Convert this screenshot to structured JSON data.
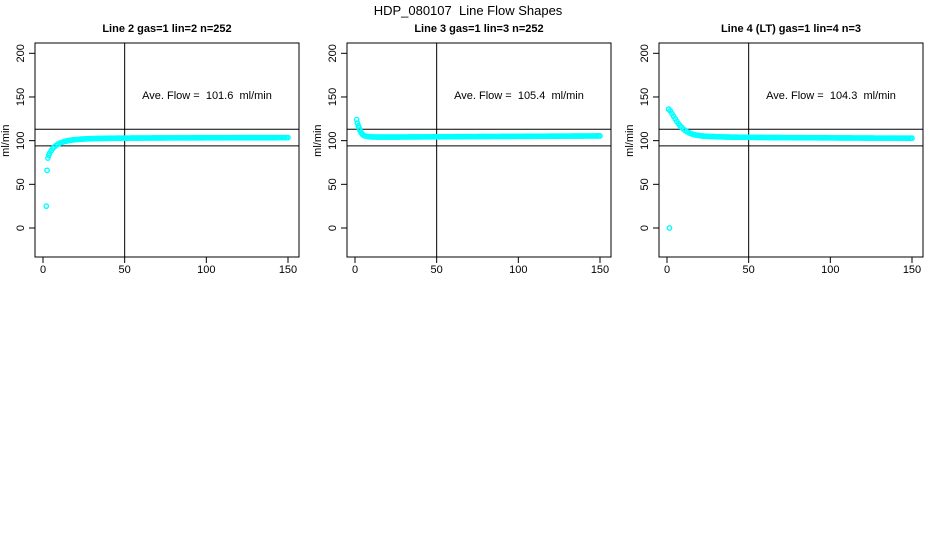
{
  "figure": {
    "title": "HDP_080107  Line Flow Shapes"
  },
  "chart_data": [
    {
      "type": "scatter",
      "title": "Line 2 gas=1 lin=2 n=252",
      "annotation": "Ave. Flow =  101.6  ml/min",
      "ave_flow_ml_min": 101.6,
      "ylabel": "ml/min",
      "xlim": [
        0,
        150
      ],
      "ylim": [
        0,
        200
      ],
      "xticks": [
        0,
        50,
        100,
        150
      ],
      "yticks": [
        0,
        50,
        100,
        150,
        200
      ],
      "ref_hlines": [
        113,
        94
      ],
      "ref_vline": 50,
      "marker_color": "#00FFFF",
      "grid": false,
      "legend": "none",
      "points": [
        [
          2,
          25
        ],
        [
          2.5,
          66
        ],
        [
          3,
          80
        ],
        [
          3.5,
          83
        ],
        [
          4,
          85.5
        ],
        [
          5,
          88.5
        ],
        [
          6,
          91
        ],
        [
          7,
          93
        ],
        [
          8,
          94.5
        ],
        [
          9,
          95.8
        ],
        [
          10,
          96.8
        ],
        [
          11,
          97.6
        ],
        [
          12,
          98.3
        ],
        [
          13,
          98.9
        ],
        [
          14,
          99.4
        ],
        [
          15,
          99.8
        ],
        [
          16,
          100.2
        ],
        [
          17,
          100.5
        ],
        [
          18,
          100.8
        ],
        [
          19,
          101
        ],
        [
          20,
          101.2
        ],
        [
          22,
          101.5
        ],
        [
          24,
          101.8
        ],
        [
          26,
          102
        ],
        [
          28,
          102.2
        ],
        [
          30,
          102.3
        ],
        [
          35,
          102.5
        ],
        [
          40,
          102.7
        ],
        [
          45,
          102.8
        ],
        [
          50,
          102.9
        ],
        [
          60,
          103
        ],
        [
          70,
          103.1
        ],
        [
          80,
          103.2
        ],
        [
          90,
          103.2
        ],
        [
          100,
          103.3
        ],
        [
          110,
          103.3
        ],
        [
          120,
          103.4
        ],
        [
          130,
          103.4
        ],
        [
          140,
          103.4
        ],
        [
          150,
          103.5
        ]
      ]
    },
    {
      "type": "scatter",
      "title": "Line 3 gas=1 lin=3 n=252",
      "annotation": "Ave. Flow =  105.4  ml/min",
      "ave_flow_ml_min": 105.4,
      "ylabel": "ml/min",
      "xlim": [
        0,
        150
      ],
      "ylim": [
        0,
        200
      ],
      "xticks": [
        0,
        50,
        100,
        150
      ],
      "yticks": [
        0,
        50,
        100,
        150,
        200
      ],
      "ref_hlines": [
        113,
        94
      ],
      "ref_vline": 50,
      "marker_color": "#00FFFF",
      "grid": false,
      "legend": "none",
      "points": [
        [
          1,
          124
        ],
        [
          1.5,
          120
        ],
        [
          2,
          117
        ],
        [
          2.5,
          114.5
        ],
        [
          3,
          112
        ],
        [
          3.5,
          110
        ],
        [
          4,
          108.5
        ],
        [
          4.5,
          107.3
        ],
        [
          5,
          106.4
        ],
        [
          6,
          105.4
        ],
        [
          7,
          104.9
        ],
        [
          8,
          104.6
        ],
        [
          9,
          104.4
        ],
        [
          10,
          104.3
        ],
        [
          12,
          104.2
        ],
        [
          15,
          104.1
        ],
        [
          20,
          104.1
        ],
        [
          25,
          104.1
        ],
        [
          30,
          104.2
        ],
        [
          40,
          104.3
        ],
        [
          50,
          104.4
        ],
        [
          60,
          104.5
        ],
        [
          70,
          104.6
        ],
        [
          80,
          104.7
        ],
        [
          90,
          104.8
        ],
        [
          100,
          104.9
        ],
        [
          110,
          105
        ],
        [
          120,
          105.1
        ],
        [
          130,
          105.2
        ],
        [
          140,
          105.3
        ],
        [
          150,
          105.4
        ]
      ]
    },
    {
      "type": "scatter",
      "title": "Line 4 (LT) gas=1 lin=4 n=3",
      "annotation": "Ave. Flow =  104.3  ml/min",
      "ave_flow_ml_min": 104.3,
      "ylabel": "ml/min",
      "xlim": [
        0,
        150
      ],
      "ylim": [
        0,
        200
      ],
      "xticks": [
        0,
        50,
        100,
        150
      ],
      "yticks": [
        0,
        50,
        100,
        150,
        200
      ],
      "ref_hlines": [
        113,
        94
      ],
      "ref_vline": 50,
      "marker_color": "#00FFFF",
      "grid": false,
      "legend": "none",
      "points": [
        [
          1.5,
          0
        ],
        [
          1,
          136
        ],
        [
          2,
          134
        ],
        [
          3,
          131
        ],
        [
          4,
          128
        ],
        [
          5,
          125
        ],
        [
          6,
          122
        ],
        [
          7,
          119.5
        ],
        [
          8,
          117
        ],
        [
          9,
          115
        ],
        [
          10,
          113.2
        ],
        [
          11,
          111.8
        ],
        [
          12,
          110.5
        ],
        [
          13,
          109.5
        ],
        [
          14,
          108.6
        ],
        [
          15,
          107.8
        ],
        [
          16,
          107.2
        ],
        [
          18,
          106.3
        ],
        [
          20,
          105.7
        ],
        [
          22,
          105.3
        ],
        [
          25,
          104.9
        ],
        [
          30,
          104.5
        ],
        [
          35,
          104.2
        ],
        [
          40,
          104
        ],
        [
          50,
          103.8
        ],
        [
          60,
          103.6
        ],
        [
          70,
          103.5
        ],
        [
          80,
          103.4
        ],
        [
          90,
          103.3
        ],
        [
          100,
          103.2
        ],
        [
          110,
          103.1
        ],
        [
          120,
          103
        ],
        [
          130,
          102.9
        ],
        [
          140,
          102.9
        ],
        [
          150,
          102.8
        ]
      ]
    }
  ]
}
